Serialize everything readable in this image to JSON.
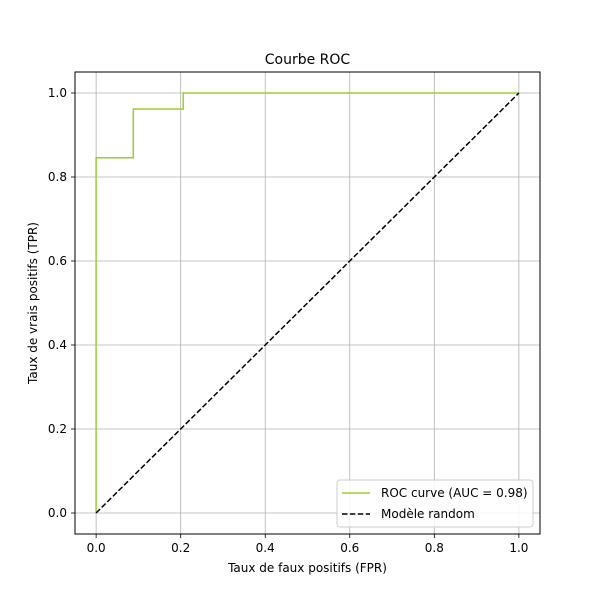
{
  "chart_data": {
    "type": "line",
    "title": "Courbe ROC",
    "xlabel": "Taux de faux positifs (FPR)",
    "ylabel": "Taux de vrais positifs (TPR)",
    "xlim": [
      -0.05,
      1.05
    ],
    "ylim": [
      -0.05,
      1.05
    ],
    "xticks": [
      "0.0",
      "0.2",
      "0.4",
      "0.6",
      "0.8",
      "1.0"
    ],
    "yticks": [
      "0.0",
      "0.2",
      "0.4",
      "0.6",
      "0.8",
      "1.0"
    ],
    "grid": true,
    "legend_position": "lower-right",
    "series": [
      {
        "name": "ROC curve (AUC = 0.98)",
        "color": "#9acd32",
        "style": "solid",
        "x": [
          0.0,
          0.0,
          0.088,
          0.088,
          0.206,
          0.206,
          1.0
        ],
        "y": [
          0.0,
          0.846,
          0.846,
          0.962,
          0.962,
          1.0,
          1.0
        ]
      },
      {
        "name": "Modèle random",
        "color": "#000000",
        "style": "dashed",
        "x": [
          0.0,
          1.0
        ],
        "y": [
          0.0,
          1.0
        ]
      }
    ]
  }
}
